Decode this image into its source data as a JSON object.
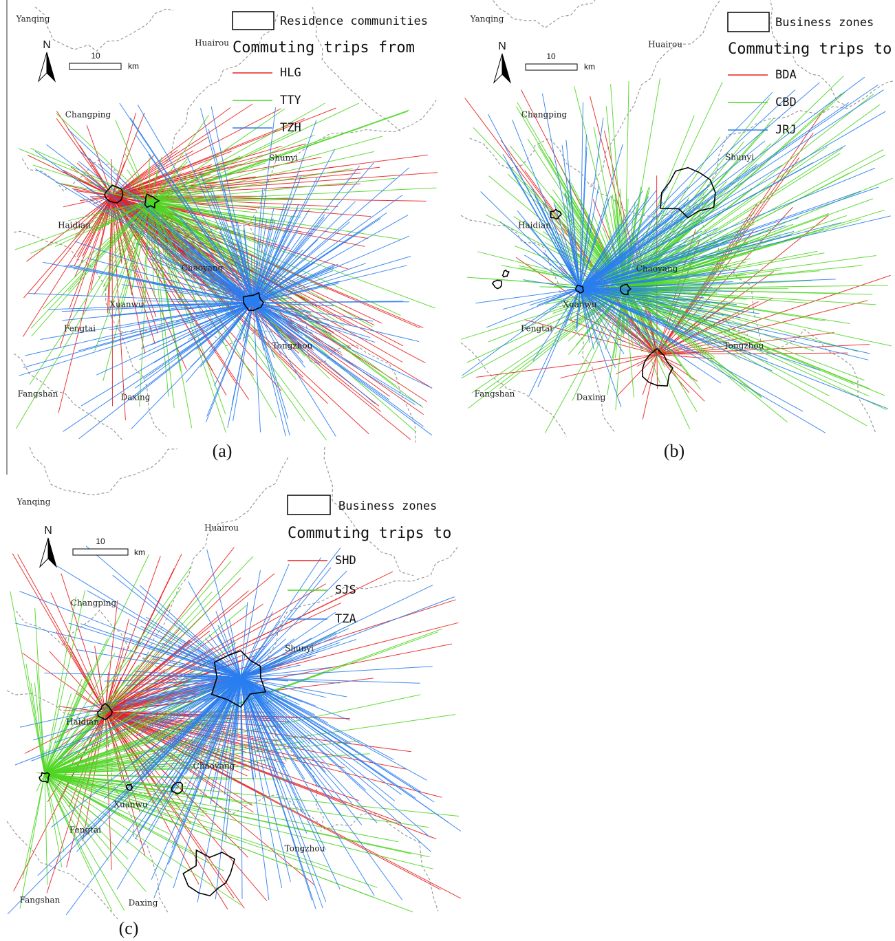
{
  "panels": [
    {
      "caption": "(a)",
      "districts": [
        "Yanqing",
        "Huairou",
        "Changping",
        "Shunyi",
        "Haidian",
        "Chaoyang",
        "Xuanwu",
        "Fengtai",
        "Tongzhou",
        "Fangshan",
        "Daxing"
      ],
      "legend": {
        "box_label": "Residence communities",
        "title": "Commuting trips from",
        "items": [
          {
            "name": "HLG",
            "color": "#e8211f"
          },
          {
            "name": "TTY",
            "color": "#4fd624"
          },
          {
            "name": "TZH",
            "color": "#2a7ef0"
          }
        ]
      },
      "scale": {
        "north": "N",
        "length": 10,
        "unit": "km"
      }
    },
    {
      "caption": "(b)",
      "districts": [
        "Yanqing",
        "Huairou",
        "Changping",
        "Shunyi",
        "Haidian",
        "Chaoyang",
        "Xuanwu",
        "Fengtai",
        "Tongzhou",
        "Fangshan",
        "Daxing"
      ],
      "legend": {
        "box_label": "Business zones",
        "title": "Commuting trips to",
        "items": [
          {
            "name": "BDA",
            "color": "#e8211f"
          },
          {
            "name": "CBD",
            "color": "#4fd624"
          },
          {
            "name": "JRJ",
            "color": "#2a7ef0"
          }
        ]
      },
      "scale": {
        "north": "N",
        "length": 10,
        "unit": "km"
      }
    },
    {
      "caption": "(c)",
      "districts": [
        "Yanqing",
        "Huairou",
        "Changping",
        "Shunyi",
        "Haidian",
        "Chaoyang",
        "Xuanwu",
        "Fengtai",
        "Tongzhou",
        "Fangshan",
        "Daxing"
      ],
      "legend": {
        "box_label": "Business zones",
        "title": "Commuting trips to",
        "items": [
          {
            "name": "SHD",
            "color": "#e8211f"
          },
          {
            "name": "SJS",
            "color": "#4fd624"
          },
          {
            "name": "TZA",
            "color": "#2a7ef0"
          }
        ]
      },
      "scale": {
        "north": "N",
        "length": 10,
        "unit": "km"
      }
    }
  ]
}
